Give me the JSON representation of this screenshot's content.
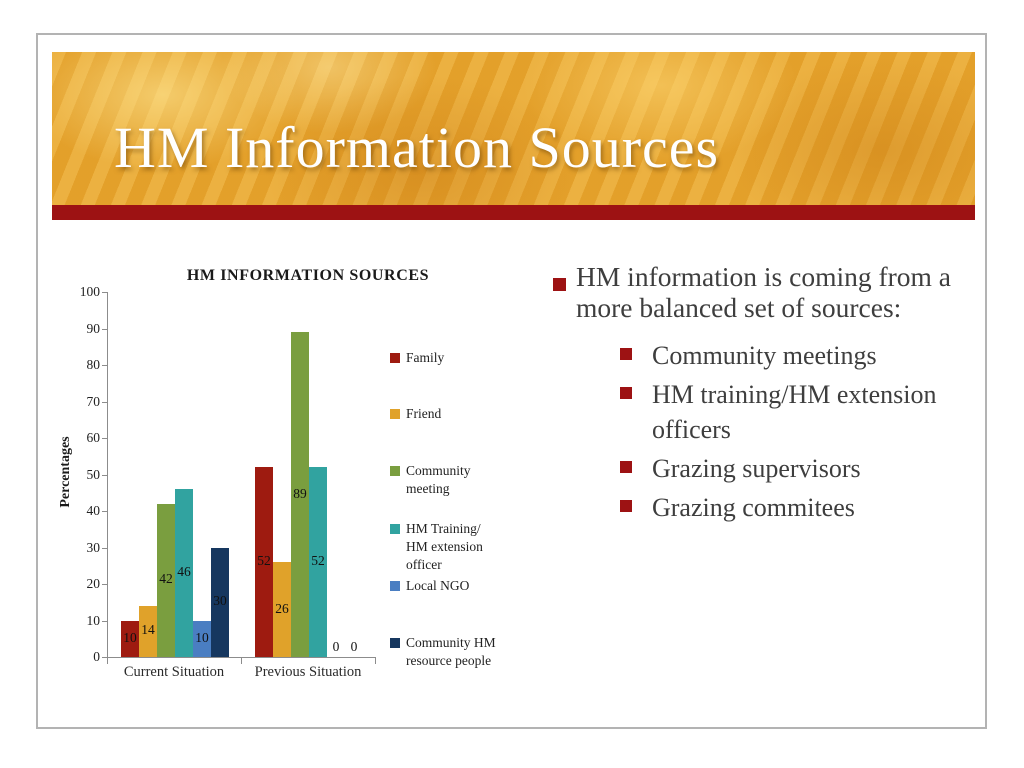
{
  "slide": {
    "title": "HM Information Sources"
  },
  "chart_data": {
    "type": "bar",
    "title": "HM INFORMATION SOURCES",
    "xlabel": "",
    "ylabel": "Percentages",
    "ylim": [
      0,
      100
    ],
    "ytick_step": 10,
    "grid": false,
    "legend_position": "right",
    "categories": [
      "Current Situation",
      "Previous Situation"
    ],
    "series": [
      {
        "name": "Family",
        "legend_label": "Family",
        "color": "#9E1B10",
        "values": [
          10,
          52
        ]
      },
      {
        "name": "Friend",
        "legend_label": "Friend",
        "color": "#E0A22A",
        "values": [
          14,
          26
        ]
      },
      {
        "name": "Community meeting",
        "legend_label": "Community\nmeeting",
        "color": "#7A9E3F",
        "values": [
          42,
          89
        ]
      },
      {
        "name": "HM Training/HM extension officer",
        "legend_label": "HM Training/\nHM extension\nofficer",
        "color": "#31A3A0",
        "values": [
          46,
          52
        ]
      },
      {
        "name": "Local NGO",
        "legend_label": "Local NGO",
        "color": "#4A7EC2",
        "values": [
          10,
          0
        ]
      },
      {
        "name": "Community HM resource people",
        "legend_label": "Community HM\nresource people",
        "color": "#16375F",
        "values": [
          30,
          0
        ]
      }
    ]
  },
  "content": {
    "main_bullet": "HM information is coming from a more balanced set of sources:",
    "sub_bullets": [
      "Community meetings",
      "HM training/HM extension officers",
      "Grazing supervisors",
      "Grazing commitees"
    ]
  },
  "colors": {
    "accent_red": "#9D1213",
    "header_gold": "#E9A72E",
    "body_text": "#3E3E3E"
  }
}
